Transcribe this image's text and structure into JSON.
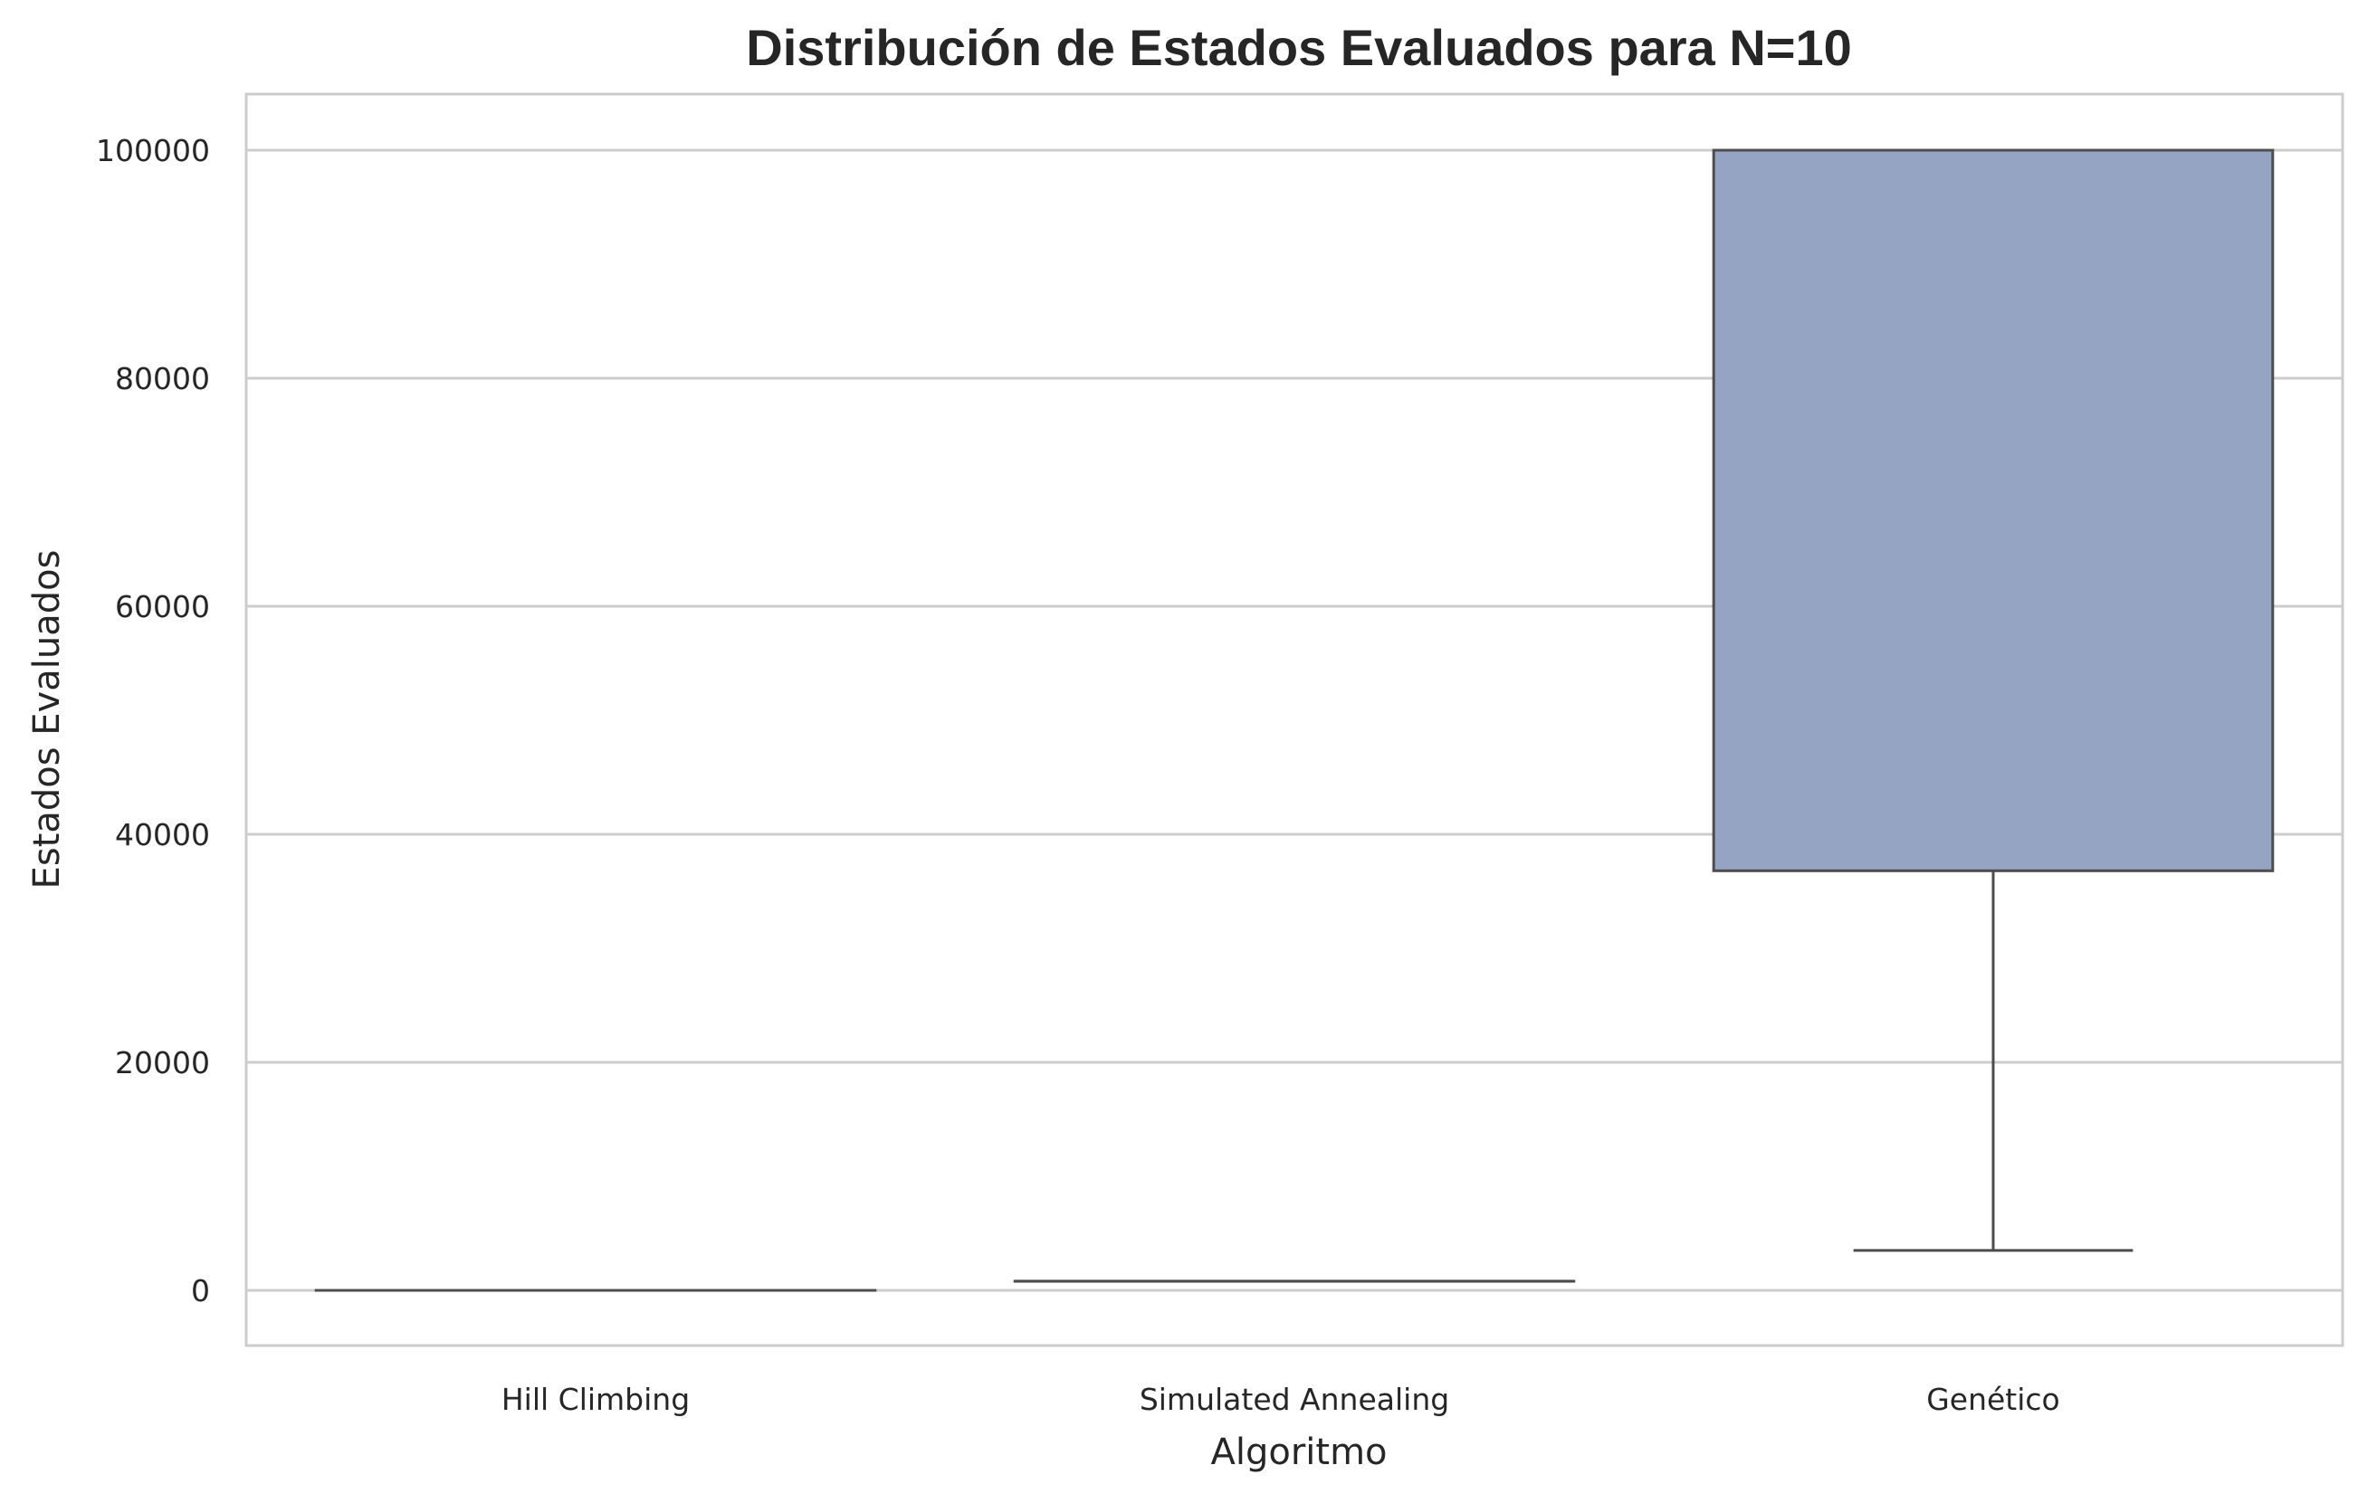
{
  "chart_data": {
    "type": "box",
    "title": "Distribución de Estados Evaluados para N=10",
    "xlabel": "Algoritmo",
    "ylabel": "Estados Evaluados",
    "ylim": [
      -5000,
      105000
    ],
    "yticks": [
      0,
      20000,
      40000,
      60000,
      80000,
      100000
    ],
    "ytick_labels": [
      "0",
      "20000",
      "40000",
      "60000",
      "80000",
      "100000"
    ],
    "grid": "horizontal",
    "categories": [
      "Hill Climbing",
      "Simulated Annealing",
      "Genético"
    ],
    "boxes": [
      {
        "category": "Hill Climbing",
        "min": 0,
        "q1": 0,
        "median": 0,
        "q3": 0,
        "max": 0,
        "color": "#66c2a5"
      },
      {
        "category": "Simulated Annealing",
        "min": 800,
        "q1": 800,
        "median": 800,
        "q3": 800,
        "max": 800,
        "color": "#fc8d62"
      },
      {
        "category": "Genético",
        "min": 3500,
        "q1": 36800,
        "median": 100000,
        "q3": 100000,
        "max": 100000,
        "color": "#95a4c3"
      }
    ],
    "colors": {
      "grid": "#cccccc",
      "frame": "#cccccc",
      "line": "#4d4d4d",
      "text": "#262626"
    }
  }
}
